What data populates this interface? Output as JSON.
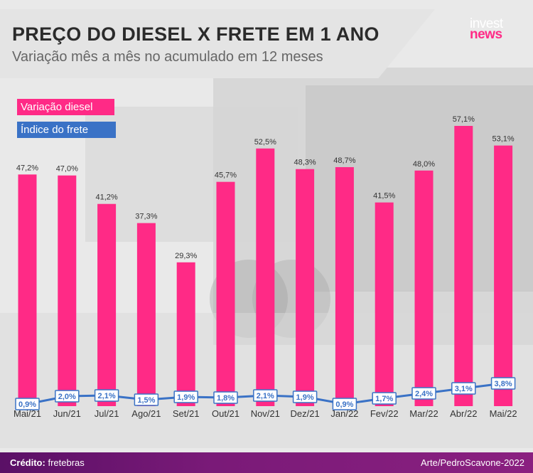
{
  "header": {
    "title": "PREÇO DO DIESEL X FRETE EM 1 ANO",
    "subtitle": "Variação mês a mês no acumulado em 12 meses"
  },
  "logo": {
    "line1": "invest",
    "line2": "news"
  },
  "legend": {
    "diesel": "Variação diesel",
    "frete": "Índice do frete"
  },
  "footer": {
    "credit_label": "Crédito:",
    "credit_value": "fretebras",
    "art": "Arte/PedroScavone-2022"
  },
  "colors": {
    "diesel": "#ff2a86",
    "frete": "#3a72c6",
    "label": "#333333"
  },
  "chart_data": {
    "type": "bar",
    "categories": [
      "Mai/21",
      "Jun/21",
      "Jul/21",
      "Ago/21",
      "Set/21",
      "Out/21",
      "Nov/21",
      "Dez/21",
      "Jan/22",
      "Fev/22",
      "Mar/22",
      "Abr/22",
      "Mai/22"
    ],
    "series": [
      {
        "name": "Variação diesel",
        "type": "bar",
        "values": [
          47.2,
          47.0,
          41.2,
          37.3,
          29.3,
          45.7,
          52.5,
          48.3,
          48.7,
          41.5,
          48.0,
          57.1,
          53.1
        ],
        "labels": [
          "47,2%",
          "47,0%",
          "41,2%",
          "37,3%",
          "29,3%",
          "45,7%",
          "52,5%",
          "48,3%",
          "48,7%",
          "41,5%",
          "48,0%",
          "57,1%",
          "53,1%"
        ]
      },
      {
        "name": "Índice do frete",
        "type": "line",
        "values": [
          0.9,
          2.0,
          2.1,
          1.5,
          1.9,
          1.8,
          2.1,
          1.9,
          0.9,
          1.7,
          2.4,
          3.1,
          3.8
        ],
        "labels": [
          "0,9%",
          "2,0%",
          "2,1%",
          "1,5%",
          "1,9%",
          "1,8%",
          "2,1%",
          "1,9%",
          "0,9%",
          "1,7%",
          "2,4%",
          "3,1%",
          "3,8%"
        ]
      }
    ],
    "legend": "top-left",
    "grid": false
  }
}
